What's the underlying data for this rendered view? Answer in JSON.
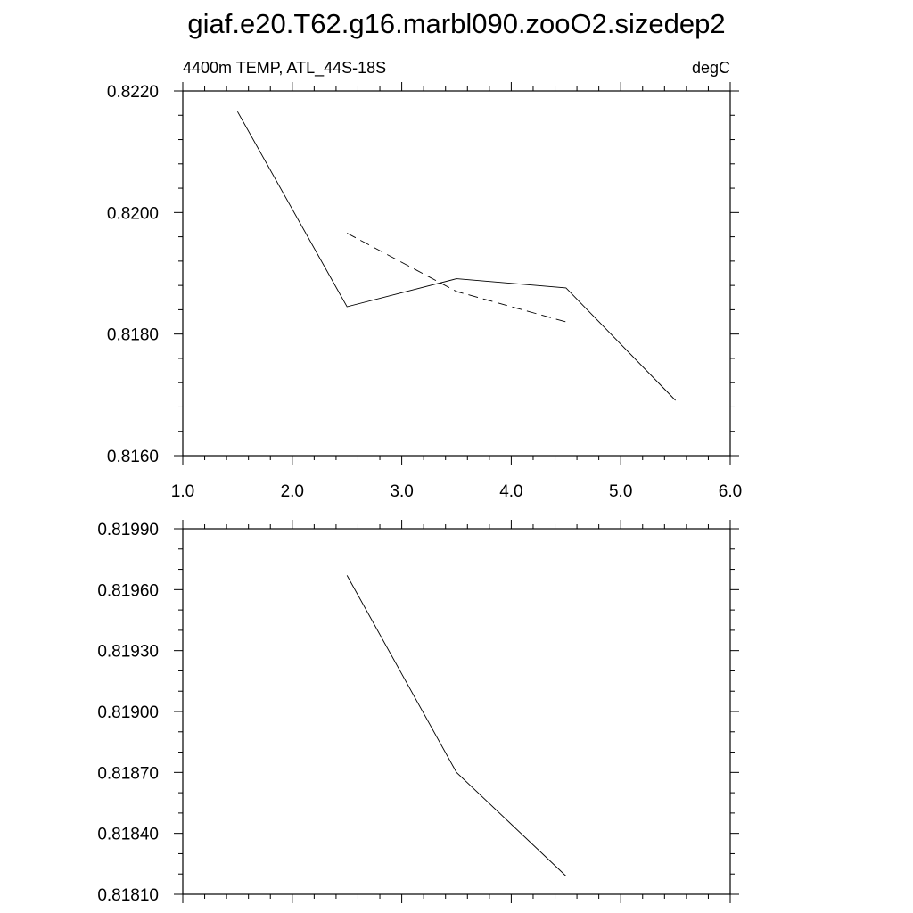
{
  "title": "giaf.e20.T62.g16.marbl090.zooO2.sizedep2",
  "chart_data": [
    {
      "type": "line",
      "left_label": "4400m TEMP, ATL_44S-18S",
      "right_label": "degC",
      "xlim": [
        1.0,
        6.0
      ],
      "ylim": [
        0.816,
        0.822
      ],
      "xticks": [
        1.0,
        2.0,
        3.0,
        4.0,
        5.0,
        6.0
      ],
      "xtick_labels": [
        "1.0",
        "2.0",
        "3.0",
        "4.0",
        "5.0",
        "6.0"
      ],
      "yticks": [
        0.816,
        0.818,
        0.82,
        0.822
      ],
      "ytick_labels": [
        "0.8160",
        "0.8180",
        "0.8200",
        "0.8220"
      ],
      "series": [
        {
          "style": "solid",
          "x": [
            1.5,
            2.5,
            3.5,
            4.5,
            5.5
          ],
          "y": [
            0.82166,
            0.81845,
            0.81891,
            0.81876,
            0.81691
          ]
        },
        {
          "style": "dashed",
          "x": [
            2.5,
            3.5,
            4.5
          ],
          "y": [
            0.81966,
            0.8187,
            0.8182
          ]
        }
      ]
    },
    {
      "type": "line",
      "xlim": [
        1.0,
        6.0
      ],
      "ylim": [
        0.8181,
        0.8199
      ],
      "xticks": [
        1.0,
        2.0,
        3.0,
        4.0,
        5.0,
        6.0
      ],
      "yticks": [
        0.8181,
        0.8184,
        0.8187,
        0.819,
        0.8193,
        0.8196,
        0.8199
      ],
      "ytick_labels": [
        "0.81810",
        "0.81840",
        "0.81870",
        "0.81900",
        "0.81930",
        "0.81960",
        "0.81990"
      ],
      "series": [
        {
          "style": "solid",
          "x": [
            2.5,
            3.5,
            4.5
          ],
          "y": [
            0.81967,
            0.8187,
            0.81819
          ]
        }
      ]
    }
  ]
}
